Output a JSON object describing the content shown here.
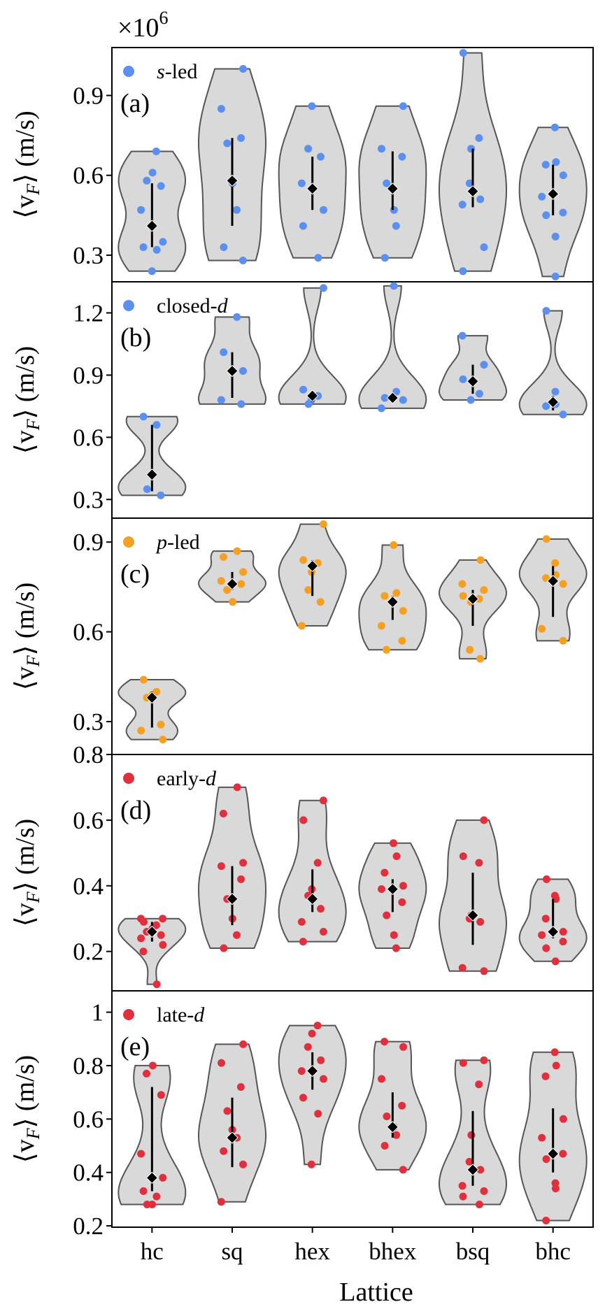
{
  "figure": {
    "multiplier": "×10",
    "multiplier_exp": "6",
    "xlabel": "Lattice",
    "ylabel": "⟨v",
    "ylabel_sub": "F",
    "ylabel_tail": "⟩ (m/s)"
  },
  "chart_data": [
    {
      "type": "violin",
      "tag": "(a)",
      "legend": {
        "prefix": "s",
        "suffix": "-led",
        "italic_part": "prefix",
        "color": "#5b8ff0"
      },
      "categories": [
        "hc",
        "sq",
        "hex",
        "bhex",
        "bsq",
        "bhc"
      ],
      "ylim": [
        0.2,
        1.08
      ],
      "yticks": [
        0.3,
        0.6,
        0.9
      ],
      "ytick_labels": [
        "0.3",
        "0.6",
        "0.9"
      ],
      "series": [
        {
          "points": [
            0.24,
            0.32,
            0.33,
            0.35,
            0.47,
            0.56,
            0.58,
            0.61,
            0.69
          ],
          "marker": 0.41,
          "whisker": [
            0.33,
            0.57
          ],
          "vmin": 0.24,
          "vmax": 0.69
        },
        {
          "points": [
            0.28,
            0.33,
            0.47,
            0.57,
            0.72,
            0.74,
            0.85,
            1.0
          ],
          "marker": 0.58,
          "whisker": [
            0.41,
            0.74
          ],
          "vmin": 0.28,
          "vmax": 1.0
        },
        {
          "points": [
            0.29,
            0.41,
            0.47,
            0.57,
            0.67,
            0.7,
            0.86
          ],
          "marker": 0.55,
          "whisker": [
            0.47,
            0.67
          ],
          "vmin": 0.29,
          "vmax": 0.86
        },
        {
          "points": [
            0.29,
            0.41,
            0.47,
            0.57,
            0.67,
            0.7,
            0.86
          ],
          "marker": 0.55,
          "whisker": [
            0.47,
            0.69
          ],
          "vmin": 0.29,
          "vmax": 0.86
        },
        {
          "points": [
            0.24,
            0.33,
            0.49,
            0.51,
            0.57,
            0.7,
            0.74,
            1.06
          ],
          "marker": 0.54,
          "whisker": [
            0.48,
            0.7
          ],
          "vmin": 0.24,
          "vmax": 1.06
        },
        {
          "points": [
            0.22,
            0.37,
            0.45,
            0.46,
            0.52,
            0.6,
            0.64,
            0.65,
            0.78
          ],
          "marker": 0.53,
          "whisker": [
            0.45,
            0.64
          ],
          "vmin": 0.22,
          "vmax": 0.78
        }
      ]
    },
    {
      "type": "violin",
      "tag": "(b)",
      "legend": {
        "prefix": "closed-",
        "suffix": "d",
        "italic_part": "suffix",
        "color": "#5b8ff0"
      },
      "categories": [
        "hc",
        "sq",
        "hex",
        "bhex",
        "bsq",
        "bhc"
      ],
      "ylim": [
        0.21,
        1.35
      ],
      "yticks": [
        0.3,
        0.6,
        0.9,
        1.2
      ],
      "ytick_labels": [
        "0.3",
        "0.6",
        "0.9",
        "1.2"
      ],
      "series": [
        {
          "points": [
            0.32,
            0.35,
            0.42,
            0.66,
            0.7
          ],
          "marker": 0.42,
          "whisker": [
            0.34,
            0.66
          ],
          "vmin": 0.32,
          "vmax": 0.7
        },
        {
          "points": [
            0.76,
            0.78,
            0.92,
            1.01,
            1.18
          ],
          "marker": 0.92,
          "whisker": [
            0.79,
            1.01
          ],
          "vmin": 0.76,
          "vmax": 1.18
        },
        {
          "points": [
            0.76,
            0.78,
            0.8,
            0.83,
            1.32
          ],
          "marker": 0.8,
          "whisker": [
            0.77,
            0.82
          ],
          "vmin": 0.76,
          "vmax": 1.32
        },
        {
          "points": [
            0.74,
            0.78,
            0.79,
            0.82,
            1.33
          ],
          "marker": 0.79,
          "whisker": [
            0.77,
            0.81
          ],
          "vmin": 0.74,
          "vmax": 1.33
        },
        {
          "points": [
            0.78,
            0.81,
            0.88,
            0.95,
            1.09
          ],
          "marker": 0.87,
          "whisker": [
            0.81,
            0.95
          ],
          "vmin": 0.78,
          "vmax": 1.09
        },
        {
          "points": [
            0.71,
            0.75,
            0.76,
            0.82,
            1.21
          ],
          "marker": 0.77,
          "whisker": [
            0.73,
            0.8
          ],
          "vmin": 0.71,
          "vmax": 1.21
        }
      ]
    },
    {
      "type": "violin",
      "tag": "(c)",
      "legend": {
        "prefix": "p",
        "suffix": "-led",
        "italic_part": "prefix",
        "color": "#f5a023"
      },
      "categories": [
        "hc",
        "sq",
        "hex",
        "bhex",
        "bsq",
        "bhc"
      ],
      "ylim": [
        0.19,
        0.98
      ],
      "yticks": [
        0.3,
        0.6,
        0.9
      ],
      "ytick_labels": [
        "0.3",
        "0.6",
        "0.9"
      ],
      "series": [
        {
          "points": [
            0.24,
            0.27,
            0.29,
            0.38,
            0.39,
            0.4,
            0.44
          ],
          "marker": 0.38,
          "whisker": [
            0.28,
            0.4
          ],
          "vmin": 0.24,
          "vmax": 0.44
        },
        {
          "points": [
            0.7,
            0.74,
            0.76,
            0.77,
            0.8,
            0.85,
            0.87
          ],
          "marker": 0.76,
          "whisker": [
            0.74,
            0.8
          ],
          "vmin": 0.7,
          "vmax": 0.87
        },
        {
          "points": [
            0.62,
            0.7,
            0.74,
            0.8,
            0.83,
            0.84,
            0.96
          ],
          "marker": 0.82,
          "whisker": [
            0.72,
            0.84
          ],
          "vmin": 0.62,
          "vmax": 0.96
        },
        {
          "points": [
            0.54,
            0.57,
            0.62,
            0.67,
            0.72,
            0.73,
            0.89
          ],
          "marker": 0.7,
          "whisker": [
            0.64,
            0.72
          ],
          "vmin": 0.54,
          "vmax": 0.89
        },
        {
          "points": [
            0.51,
            0.54,
            0.7,
            0.71,
            0.72,
            0.74,
            0.76,
            0.84
          ],
          "marker": 0.71,
          "whisker": [
            0.62,
            0.74
          ],
          "vmin": 0.51,
          "vmax": 0.84
        },
        {
          "points": [
            0.57,
            0.61,
            0.76,
            0.78,
            0.79,
            0.83,
            0.91
          ],
          "marker": 0.77,
          "whisker": [
            0.65,
            0.82
          ],
          "vmin": 0.57,
          "vmax": 0.91
        }
      ]
    },
    {
      "type": "violin",
      "tag": "(d)",
      "legend": {
        "prefix": "early-",
        "suffix": "d",
        "italic_part": "suffix",
        "color": "#e0303d"
      },
      "categories": [
        "hc",
        "sq",
        "hex",
        "bhex",
        "bsq",
        "bhc"
      ],
      "ylim": [
        0.08,
        0.8
      ],
      "yticks": [
        0.2,
        0.4,
        0.6,
        0.8
      ],
      "ytick_labels": [
        "0.2",
        "0.4",
        "0.6",
        "0.8"
      ],
      "series": [
        {
          "points": [
            0.1,
            0.2,
            0.22,
            0.24,
            0.25,
            0.26,
            0.27,
            0.28,
            0.29,
            0.3,
            0.3
          ],
          "marker": 0.26,
          "whisker": [
            0.23,
            0.29
          ],
          "vmin": 0.1,
          "vmax": 0.3
        },
        {
          "points": [
            0.21,
            0.25,
            0.3,
            0.36,
            0.42,
            0.46,
            0.47,
            0.62,
            0.7
          ],
          "marker": 0.36,
          "whisker": [
            0.28,
            0.46
          ],
          "vmin": 0.21,
          "vmax": 0.7
        },
        {
          "points": [
            0.23,
            0.26,
            0.29,
            0.33,
            0.37,
            0.39,
            0.47,
            0.6,
            0.66
          ],
          "marker": 0.36,
          "whisker": [
            0.32,
            0.45
          ],
          "vmin": 0.23,
          "vmax": 0.66
        },
        {
          "points": [
            0.21,
            0.25,
            0.31,
            0.35,
            0.39,
            0.4,
            0.44,
            0.49,
            0.53
          ],
          "marker": 0.39,
          "whisker": [
            0.32,
            0.42
          ],
          "vmin": 0.21,
          "vmax": 0.53
        },
        {
          "points": [
            0.14,
            0.15,
            0.29,
            0.3,
            0.31,
            0.47,
            0.49,
            0.6
          ],
          "marker": 0.31,
          "whisker": [
            0.22,
            0.44
          ],
          "vmin": 0.14,
          "vmax": 0.6
        },
        {
          "points": [
            0.17,
            0.21,
            0.23,
            0.25,
            0.26,
            0.3,
            0.36,
            0.37,
            0.42
          ],
          "marker": 0.26,
          "whisker": [
            0.24,
            0.36
          ],
          "vmin": 0.17,
          "vmax": 0.42
        }
      ]
    },
    {
      "type": "violin",
      "tag": "(e)",
      "legend": {
        "prefix": "late-",
        "suffix": "d",
        "italic_part": "suffix",
        "color": "#e0303d"
      },
      "categories": [
        "hc",
        "sq",
        "hex",
        "bhex",
        "bsq",
        "bhc"
      ],
      "ylim": [
        0.195,
        1.08
      ],
      "yticks": [
        0.2,
        0.4,
        0.6,
        0.8,
        1.0
      ],
      "ytick_labels": [
        "0.2",
        "0.4",
        "0.6",
        "0.8",
        "1"
      ],
      "series": [
        {
          "points": [
            0.28,
            0.28,
            0.31,
            0.33,
            0.38,
            0.47,
            0.69,
            0.77,
            0.8
          ],
          "marker": 0.38,
          "whisker": [
            0.33,
            0.72
          ],
          "vmin": 0.28,
          "vmax": 0.8
        },
        {
          "points": [
            0.29,
            0.43,
            0.48,
            0.53,
            0.56,
            0.63,
            0.72,
            0.81,
            0.88
          ],
          "marker": 0.53,
          "whisker": [
            0.42,
            0.68
          ],
          "vmin": 0.29,
          "vmax": 0.88
        },
        {
          "points": [
            0.43,
            0.62,
            0.68,
            0.75,
            0.78,
            0.82,
            0.87,
            0.92,
            0.95
          ],
          "marker": 0.78,
          "whisker": [
            0.71,
            0.85
          ],
          "vmin": 0.43,
          "vmax": 0.95
        },
        {
          "points": [
            0.41,
            0.5,
            0.54,
            0.57,
            0.61,
            0.65,
            0.75,
            0.87,
            0.89
          ],
          "marker": 0.57,
          "whisker": [
            0.53,
            0.7
          ],
          "vmin": 0.41,
          "vmax": 0.89
        },
        {
          "points": [
            0.28,
            0.31,
            0.33,
            0.35,
            0.41,
            0.44,
            0.54,
            0.73,
            0.81,
            0.82
          ],
          "marker": 0.41,
          "whisker": [
            0.35,
            0.63
          ],
          "vmin": 0.28,
          "vmax": 0.82
        },
        {
          "points": [
            0.22,
            0.34,
            0.36,
            0.45,
            0.47,
            0.53,
            0.6,
            0.76,
            0.8,
            0.85
          ],
          "marker": 0.47,
          "whisker": [
            0.4,
            0.64
          ],
          "vmin": 0.22,
          "vmax": 0.85
        }
      ]
    }
  ]
}
